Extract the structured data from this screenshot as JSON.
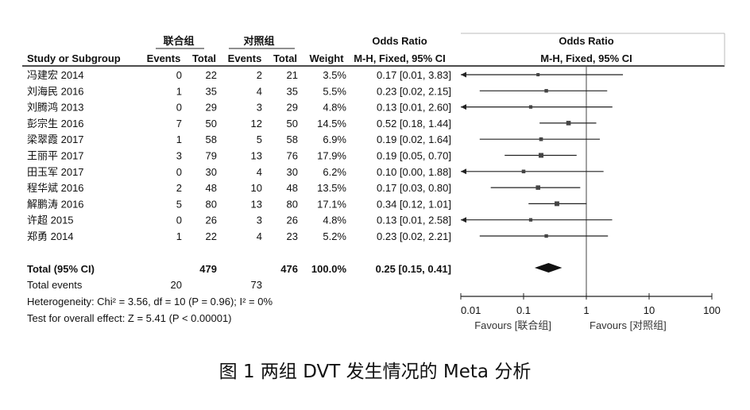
{
  "caption": "图 1   两组 DVT 发生情况的 Meta 分析",
  "headers": {
    "group1": "联合组",
    "group2": "对照组",
    "or_group": "Odds Ratio",
    "or_method": "M-H, Fixed, 95% CI",
    "plot_title": "Odds Ratio",
    "plot_method": "M-H, Fixed, 95% CI",
    "study": "Study or Subgroup",
    "events": "Events",
    "total": "Total",
    "weight": "Weight"
  },
  "studies": [
    {
      "name": "冯建宏 2014",
      "e1": "0",
      "n1": "22",
      "e2": "2",
      "n2": "21",
      "weight": "3.5%",
      "ci_text": "0.17 [0.01, 3.83]"
    },
    {
      "name": "刘海民 2016",
      "e1": "1",
      "n1": "35",
      "e2": "4",
      "n2": "35",
      "weight": "5.5%",
      "ci_text": "0.23 [0.02, 2.15]"
    },
    {
      "name": "刘腾鸿 2013",
      "e1": "0",
      "n1": "29",
      "e2": "3",
      "n2": "29",
      "weight": "4.8%",
      "ci_text": "0.13 [0.01, 2.60]"
    },
    {
      "name": "彭宗生 2016",
      "e1": "7",
      "n1": "50",
      "e2": "12",
      "n2": "50",
      "weight": "14.5%",
      "ci_text": "0.52 [0.18, 1.44]"
    },
    {
      "name": "梁翠霞 2017",
      "e1": "1",
      "n1": "58",
      "e2": "5",
      "n2": "58",
      "weight": "6.9%",
      "ci_text": "0.19 [0.02, 1.64]"
    },
    {
      "name": "王丽平 2017",
      "e1": "3",
      "n1": "79",
      "e2": "13",
      "n2": "76",
      "weight": "17.9%",
      "ci_text": "0.19 [0.05, 0.70]"
    },
    {
      "name": "田玉军 2017",
      "e1": "0",
      "n1": "30",
      "e2": "4",
      "n2": "30",
      "weight": "6.2%",
      "ci_text": "0.10 [0.00, 1.88]"
    },
    {
      "name": "程华斌 2016",
      "e1": "2",
      "n1": "48",
      "e2": "10",
      "n2": "48",
      "weight": "13.5%",
      "ci_text": "0.17 [0.03, 0.80]"
    },
    {
      "name": "解鹏涛 2016",
      "e1": "5",
      "n1": "80",
      "e2": "13",
      "n2": "80",
      "weight": "17.1%",
      "ci_text": "0.34 [0.12, 1.01]"
    },
    {
      "name": "许超 2015",
      "e1": "0",
      "n1": "26",
      "e2": "3",
      "n2": "26",
      "weight": "4.8%",
      "ci_text": "0.13 [0.01, 2.58]"
    },
    {
      "name": "郑勇 2014",
      "e1": "1",
      "n1": "22",
      "e2": "4",
      "n2": "23",
      "weight": "5.2%",
      "ci_text": "0.23 [0.02, 2.21]"
    }
  ],
  "total": {
    "label": "Total (95% CI)",
    "n1": "479",
    "n2": "476",
    "weight": "100.0%",
    "ci_text": "0.25 [0.15, 0.41]"
  },
  "total_events": {
    "label": "Total events",
    "e1": "20",
    "e2": "73"
  },
  "heterogeneity": "Heterogeneity: Chi² = 3.56, df = 10 (P = 0.96); I² = 0%",
  "overall_effect": "Test for overall effect: Z = 5.41 (P < 0.00001)",
  "axis": {
    "ticks": [
      0.01,
      0.1,
      1,
      10,
      100
    ],
    "tick_labels": [
      "0.01",
      "0.1",
      "1",
      "10",
      "100"
    ],
    "favours_left": "Favours [联合组]",
    "favours_right": "Favours [对照组]"
  },
  "chart_data": {
    "type": "forest",
    "scale": "log",
    "xlim": [
      0.01,
      100
    ],
    "null_line": 1,
    "studies": [
      {
        "name": "冯建宏 2014",
        "or": 0.17,
        "lo": 0.01,
        "hi": 3.83,
        "weight": 3.5
      },
      {
        "name": "刘海民 2016",
        "or": 0.23,
        "lo": 0.02,
        "hi": 2.15,
        "weight": 5.5
      },
      {
        "name": "刘腾鸿 2013",
        "or": 0.13,
        "lo": 0.01,
        "hi": 2.6,
        "weight": 4.8
      },
      {
        "name": "彭宗生 2016",
        "or": 0.52,
        "lo": 0.18,
        "hi": 1.44,
        "weight": 14.5
      },
      {
        "name": "梁翠霞 2017",
        "or": 0.19,
        "lo": 0.02,
        "hi": 1.64,
        "weight": 6.9
      },
      {
        "name": "王丽平 2017",
        "or": 0.19,
        "lo": 0.05,
        "hi": 0.7,
        "weight": 17.9
      },
      {
        "name": "田玉军 2017",
        "or": 0.1,
        "lo": 0.0,
        "hi": 1.88,
        "weight": 6.2
      },
      {
        "name": "程华斌 2016",
        "or": 0.17,
        "lo": 0.03,
        "hi": 0.8,
        "weight": 13.5
      },
      {
        "name": "解鹏涛 2016",
        "or": 0.34,
        "lo": 0.12,
        "hi": 1.01,
        "weight": 17.1
      },
      {
        "name": "许超 2015",
        "or": 0.13,
        "lo": 0.01,
        "hi": 2.58,
        "weight": 4.8
      },
      {
        "name": "郑勇 2014",
        "or": 0.23,
        "lo": 0.02,
        "hi": 2.21,
        "weight": 5.2
      }
    ],
    "pooled": {
      "or": 0.25,
      "lo": 0.15,
      "hi": 0.41
    }
  }
}
